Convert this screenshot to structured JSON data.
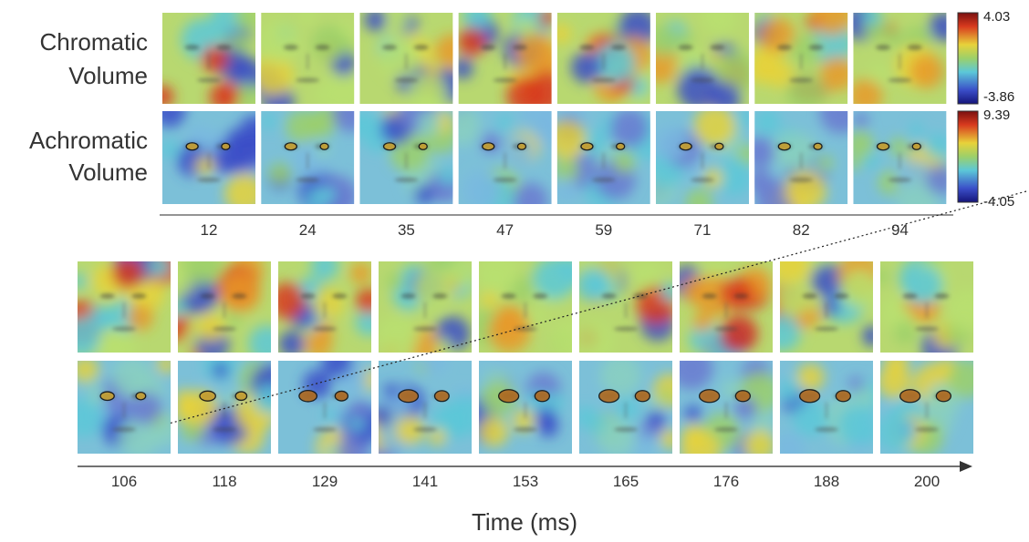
{
  "row_labels": [
    [
      "Chromatic",
      "Volume"
    ],
    [
      "Achromatic",
      "Volume"
    ]
  ],
  "top_times": [
    12,
    24,
    35,
    47,
    59,
    71,
    82,
    94
  ],
  "bottom_times": [
    106,
    118,
    129,
    141,
    153,
    165,
    176,
    188,
    200
  ],
  "colorbars": [
    {
      "max": "4.03",
      "min": "-3.86"
    },
    {
      "max": "9.39",
      "min": "-4.05"
    }
  ],
  "axis_title": "Time (ms)"
}
